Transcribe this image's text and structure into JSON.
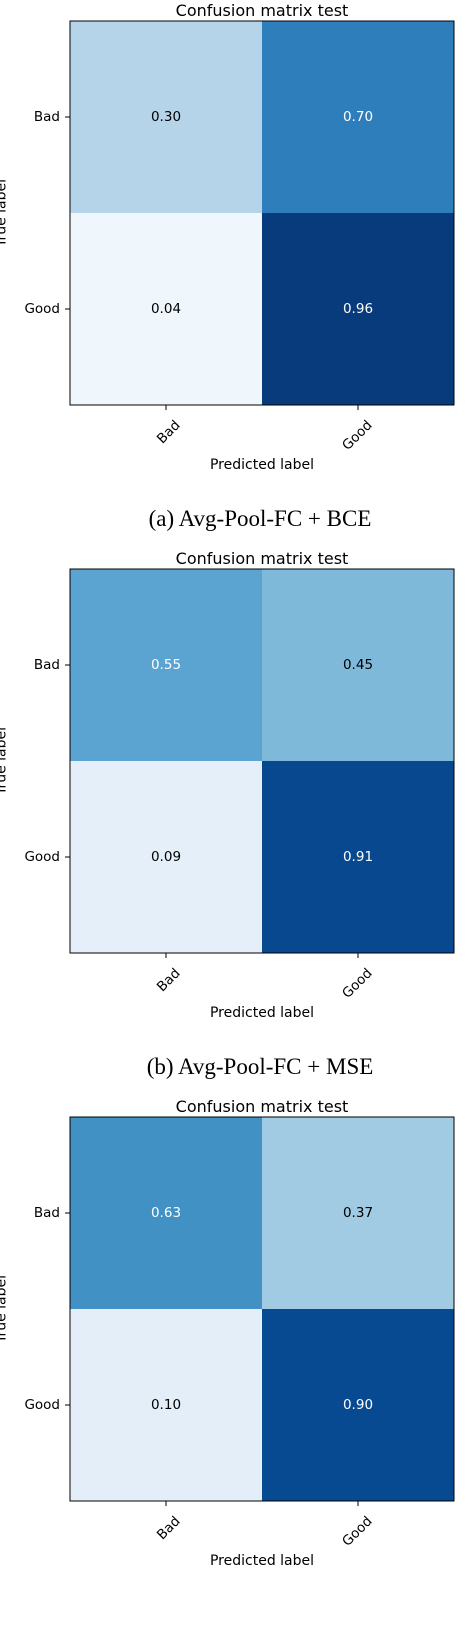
{
  "chart_data": [
    {
      "type": "heatmap",
      "title": "Confusion matrix test",
      "xlabel": "Predicted label",
      "ylabel": "True label",
      "x_categories": [
        "Bad",
        "Good"
      ],
      "y_categories": [
        "Bad",
        "Good"
      ],
      "values": [
        [
          0.3,
          0.7
        ],
        [
          0.04,
          0.96
        ]
      ],
      "cell_labels": [
        [
          "0.30",
          "0.70"
        ],
        [
          "0.04",
          "0.96"
        ]
      ],
      "colormap": "Blues",
      "range": [
        0,
        1
      ],
      "caption": "(a) Avg-Pool-FC + BCE"
    },
    {
      "type": "heatmap",
      "title": "Confusion matrix test",
      "xlabel": "Predicted label",
      "ylabel": "True label",
      "x_categories": [
        "Bad",
        "Good"
      ],
      "y_categories": [
        "Bad",
        "Good"
      ],
      "values": [
        [
          0.55,
          0.45
        ],
        [
          0.09,
          0.91
        ]
      ],
      "cell_labels": [
        [
          "0.55",
          "0.45"
        ],
        [
          "0.09",
          "0.91"
        ]
      ],
      "colormap": "Blues",
      "range": [
        0,
        1
      ],
      "caption": "(b) Avg-Pool-FC + MSE"
    },
    {
      "type": "heatmap",
      "title": "Confusion matrix test",
      "xlabel": "Predicted label",
      "ylabel": "True label",
      "x_categories": [
        "Bad",
        "Good"
      ],
      "y_categories": [
        "Bad",
        "Good"
      ],
      "values": [
        [
          0.63,
          0.37
        ],
        [
          0.1,
          0.9
        ]
      ],
      "cell_labels": [
        [
          "0.63",
          "0.37"
        ],
        [
          "0.10",
          "0.90"
        ]
      ],
      "colormap": "Blues",
      "range": [
        0,
        1
      ],
      "caption": ""
    }
  ]
}
